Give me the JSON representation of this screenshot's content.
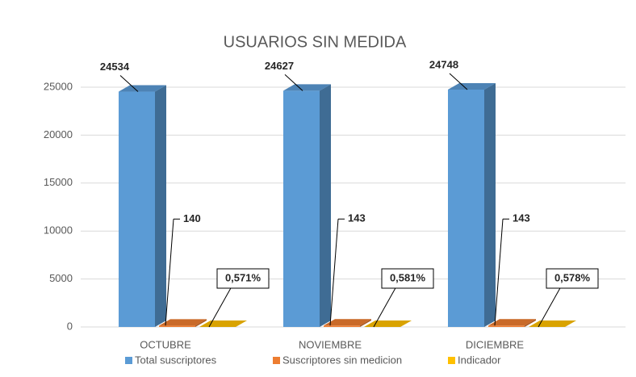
{
  "chart_data": {
    "type": "bar3d",
    "title": "USUARIOS SIN MEDIDA",
    "categories": [
      "OCTUBRE",
      "NOVIEMBRE",
      "DICIEMBRE"
    ],
    "series": [
      {
        "name": "Total suscriptores",
        "color": "#5b9bd5",
        "values": [
          24534,
          24627,
          24748
        ]
      },
      {
        "name": "Suscriptores sin medicion",
        "color": "#ed7d31",
        "values": [
          140,
          143,
          143
        ]
      },
      {
        "name": "Indicador",
        "color": "#ffc000",
        "values": [
          0.571,
          0.581,
          0.578
        ],
        "value_labels": [
          "0,571%",
          "0,581%",
          "0,578%"
        ]
      }
    ],
    "ylim": [
      0,
      25000
    ],
    "yticks": [
      0,
      5000,
      10000,
      15000,
      20000,
      25000
    ],
    "grid": true,
    "legend": "bottom"
  }
}
